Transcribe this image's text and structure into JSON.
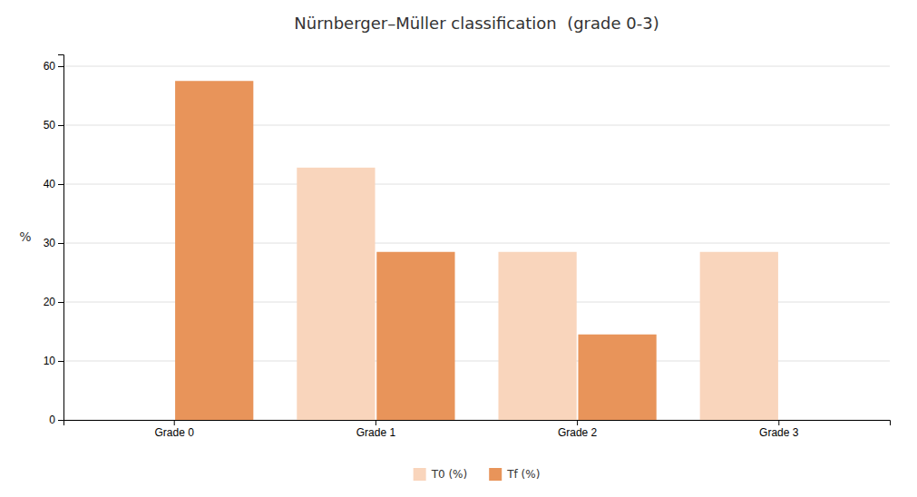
{
  "chart_data": {
    "type": "bar",
    "title": "Nürnberger–Müller classification  (grade 0-3)",
    "ylabel": "%",
    "categories": [
      "Grade 0",
      "Grade 1",
      "Grade 2",
      "Grade 3"
    ],
    "series": [
      {
        "name": "T0 (%)",
        "color": "#f9d5bc",
        "values": [
          0,
          42.8,
          28.5,
          28.5
        ]
      },
      {
        "name": "Tf (%)",
        "color": "#e8945a",
        "values": [
          57.5,
          28.5,
          14.5,
          0
        ]
      }
    ],
    "ylim": [
      0,
      62
    ],
    "yticks": [
      0,
      10,
      20,
      30,
      40,
      50,
      60
    ],
    "grid": true,
    "legend": "bottom"
  }
}
